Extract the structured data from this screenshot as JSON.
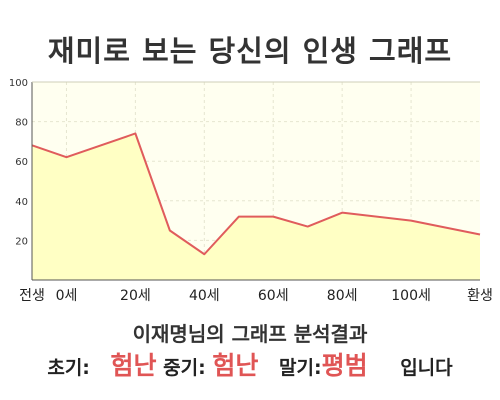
{
  "chart_data": {
    "type": "area",
    "title": "재미로 보는 당신의 인생 그래프",
    "x": [
      "전생",
      "0세",
      "20세",
      "40세",
      "60세",
      "80세",
      "100세",
      "환생"
    ],
    "series": [
      {
        "x": [
          -10,
          0,
          20,
          30,
          40,
          50,
          60,
          70,
          80,
          100,
          120
        ],
        "values": [
          68,
          62,
          74,
          25,
          13,
          32,
          32,
          27,
          34,
          30,
          23
        ]
      }
    ],
    "y_ticks": [
      20,
      40,
      60,
      80,
      100
    ],
    "ylim": [
      0,
      100
    ],
    "xlim": [
      -10,
      120
    ],
    "grid": true,
    "colors": {
      "line": "#e05c5c",
      "fill": "#ffffc4",
      "plot_bg": "#fffff0",
      "grid": "#e6e6d0"
    }
  },
  "result": {
    "heading": "이재명님의 그래프 분석결과",
    "early_label": "초기:",
    "early_value": "험난",
    "mid_label": "중기:",
    "mid_value": "험난",
    "late_label": "말기:",
    "late_value": "평범",
    "suffix": "입니다"
  }
}
